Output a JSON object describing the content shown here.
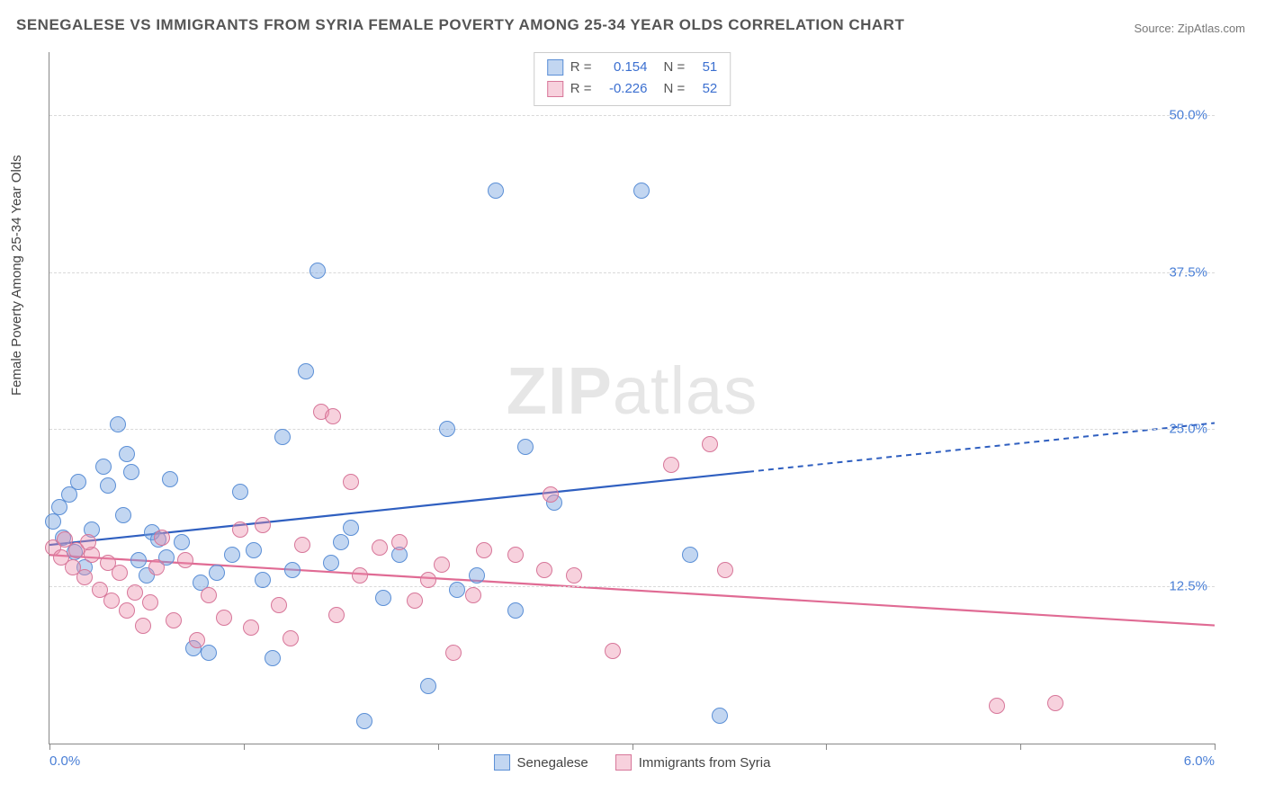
{
  "title": "SENEGALESE VS IMMIGRANTS FROM SYRIA FEMALE POVERTY AMONG 25-34 YEAR OLDS CORRELATION CHART",
  "source": "Source: ZipAtlas.com",
  "ylabel": "Female Poverty Among 25-34 Year Olds",
  "watermark_bold": "ZIP",
  "watermark_rest": "atlas",
  "chart": {
    "type": "scatter",
    "background_color": "#ffffff",
    "grid_color": "#d9d9d9",
    "axis_color": "#888888",
    "xlim": [
      0.0,
      6.0
    ],
    "ylim": [
      0.0,
      55.0
    ],
    "x_ticks": [
      0.0,
      1.0,
      2.0,
      3.0,
      4.0,
      5.0,
      6.0
    ],
    "x_axis_labels": [
      {
        "value": 0.0,
        "text": "0.0%"
      },
      {
        "value": 6.0,
        "text": "6.0%"
      }
    ],
    "y_gridlines": [
      12.5,
      25.0,
      37.5,
      50.0
    ],
    "y_tick_labels": [
      "12.5%",
      "25.0%",
      "37.5%",
      "50.0%"
    ],
    "marker_radius": 9,
    "marker_border_width": 1.2,
    "series": [
      {
        "name": "Senegalese",
        "fill": "rgba(120,165,225,0.45)",
        "stroke": "#5b8fd6",
        "line_color": "#2f5fc0",
        "points": [
          [
            0.02,
            17.7
          ],
          [
            0.05,
            18.8
          ],
          [
            0.07,
            16.4
          ],
          [
            0.1,
            19.8
          ],
          [
            0.13,
            15.2
          ],
          [
            0.15,
            20.8
          ],
          [
            0.18,
            14.0
          ],
          [
            0.22,
            17.0
          ],
          [
            0.28,
            22.0
          ],
          [
            0.3,
            20.5
          ],
          [
            0.35,
            25.4
          ],
          [
            0.38,
            18.2
          ],
          [
            0.42,
            21.6
          ],
          [
            0.46,
            14.6
          ],
          [
            0.5,
            13.4
          ],
          [
            0.53,
            16.8
          ],
          [
            0.56,
            16.2
          ],
          [
            0.6,
            14.8
          ],
          [
            0.62,
            21.0
          ],
          [
            0.68,
            16.0
          ],
          [
            0.74,
            7.6
          ],
          [
            0.78,
            12.8
          ],
          [
            0.82,
            7.2
          ],
          [
            0.86,
            13.6
          ],
          [
            0.94,
            15.0
          ],
          [
            0.98,
            20.0
          ],
          [
            1.05,
            15.4
          ],
          [
            1.1,
            13.0
          ],
          [
            1.15,
            6.8
          ],
          [
            1.2,
            24.4
          ],
          [
            1.25,
            13.8
          ],
          [
            1.32,
            29.6
          ],
          [
            1.38,
            37.6
          ],
          [
            1.45,
            14.4
          ],
          [
            1.5,
            16.0
          ],
          [
            1.55,
            17.2
          ],
          [
            1.62,
            1.8
          ],
          [
            1.72,
            11.6
          ],
          [
            1.95,
            4.6
          ],
          [
            2.05,
            25.0
          ],
          [
            2.1,
            12.2
          ],
          [
            2.2,
            13.4
          ],
          [
            2.3,
            44.0
          ],
          [
            2.4,
            10.6
          ],
          [
            2.45,
            23.6
          ],
          [
            3.05,
            44.0
          ],
          [
            3.3,
            15.0
          ],
          [
            3.45,
            2.2
          ],
          [
            2.6,
            19.2
          ],
          [
            1.8,
            15.0
          ],
          [
            0.4,
            23.0
          ]
        ],
        "trend": {
          "x1": 0.0,
          "y1": 15.8,
          "x2": 6.0,
          "y2": 25.5,
          "solid_until_x": 3.6
        }
      },
      {
        "name": "Immigrants from Syria",
        "fill": "rgba(235,140,170,0.40)",
        "stroke": "#d77699",
        "line_color": "#e06b94",
        "points": [
          [
            0.02,
            15.6
          ],
          [
            0.06,
            14.8
          ],
          [
            0.08,
            16.2
          ],
          [
            0.12,
            14.0
          ],
          [
            0.14,
            15.4
          ],
          [
            0.18,
            13.2
          ],
          [
            0.22,
            15.0
          ],
          [
            0.26,
            12.2
          ],
          [
            0.3,
            14.4
          ],
          [
            0.32,
            11.4
          ],
          [
            0.36,
            13.6
          ],
          [
            0.4,
            10.6
          ],
          [
            0.44,
            12.0
          ],
          [
            0.48,
            9.4
          ],
          [
            0.52,
            11.2
          ],
          [
            0.58,
            16.4
          ],
          [
            0.64,
            9.8
          ],
          [
            0.7,
            14.6
          ],
          [
            0.76,
            8.2
          ],
          [
            0.82,
            11.8
          ],
          [
            0.9,
            10.0
          ],
          [
            0.98,
            17.0
          ],
          [
            1.04,
            9.2
          ],
          [
            1.1,
            17.4
          ],
          [
            1.18,
            11.0
          ],
          [
            1.24,
            8.4
          ],
          [
            1.3,
            15.8
          ],
          [
            1.4,
            26.4
          ],
          [
            1.48,
            10.2
          ],
          [
            1.55,
            20.8
          ],
          [
            1.6,
            13.4
          ],
          [
            1.7,
            15.6
          ],
          [
            1.8,
            16.0
          ],
          [
            1.88,
            11.4
          ],
          [
            1.95,
            13.0
          ],
          [
            2.02,
            14.2
          ],
          [
            2.08,
            7.2
          ],
          [
            2.18,
            11.8
          ],
          [
            2.24,
            15.4
          ],
          [
            2.4,
            15.0
          ],
          [
            2.55,
            13.8
          ],
          [
            2.58,
            19.8
          ],
          [
            2.7,
            13.4
          ],
          [
            2.9,
            7.4
          ],
          [
            3.2,
            22.2
          ],
          [
            3.4,
            23.8
          ],
          [
            3.48,
            13.8
          ],
          [
            4.88,
            3.0
          ],
          [
            5.18,
            3.2
          ],
          [
            1.46,
            26.0
          ],
          [
            0.55,
            14.0
          ],
          [
            0.2,
            16.0
          ]
        ],
        "trend": {
          "x1": 0.0,
          "y1": 15.0,
          "x2": 6.0,
          "y2": 9.4,
          "solid_until_x": 6.0
        }
      }
    ],
    "stats": [
      {
        "swatch_fill": "rgba(120,165,225,0.45)",
        "swatch_stroke": "#5b8fd6",
        "r_label": "R =",
        "r": "0.154",
        "n_label": "N =",
        "n": "51"
      },
      {
        "swatch_fill": "rgba(235,140,170,0.40)",
        "swatch_stroke": "#d77699",
        "r_label": "R =",
        "r": "-0.226",
        "n_label": "N =",
        "n": "52"
      }
    ],
    "legend": [
      {
        "swatch_fill": "rgba(120,165,225,0.45)",
        "swatch_stroke": "#5b8fd6",
        "label": "Senegalese"
      },
      {
        "swatch_fill": "rgba(235,140,170,0.40)",
        "swatch_stroke": "#d77699",
        "label": "Immigrants from Syria"
      }
    ]
  }
}
